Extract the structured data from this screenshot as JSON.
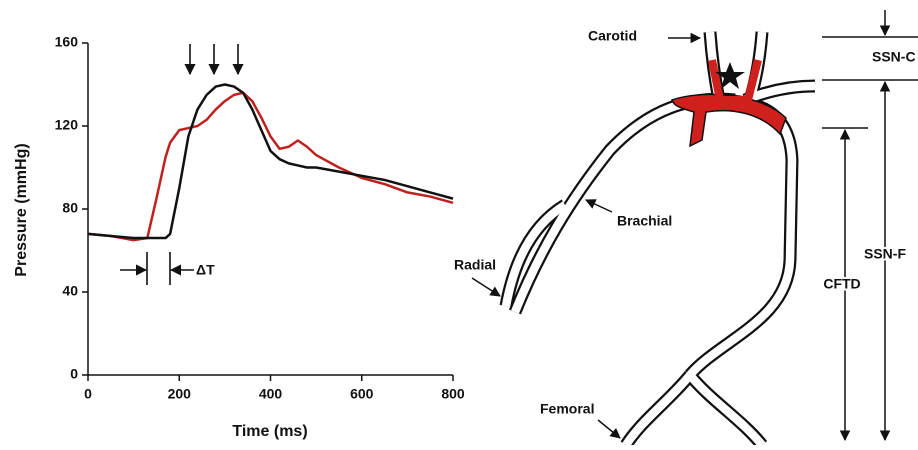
{
  "chart_data": {
    "type": "line",
    "xlabel": "Time (ms)",
    "ylabel": "Pressure (mmHg)",
    "annotation": "ΔT",
    "x": [
      0,
      50,
      100,
      130,
      150,
      170,
      180,
      200,
      220,
      240,
      260,
      280,
      300,
      320,
      340,
      360,
      380,
      400,
      420,
      440,
      460,
      480,
      500,
      550,
      600,
      650,
      700,
      750,
      800
    ],
    "series": [
      {
        "color": "#111111",
        "values": [
          68,
          67,
          66,
          66,
          66,
          66,
          68,
          90,
          115,
          128,
          135,
          139,
          140,
          139,
          136,
          128,
          118,
          108,
          104,
          102,
          101,
          100,
          100,
          98,
          96,
          94,
          91,
          88,
          85
        ]
      },
      {
        "color": "#c0201e",
        "values": [
          68,
          67,
          65,
          66,
          85,
          105,
          112,
          118,
          119,
          120,
          123,
          128,
          132,
          135,
          136,
          132,
          124,
          115,
          109,
          110,
          113,
          110,
          106,
          100,
          95,
          92,
          88,
          86,
          83
        ]
      }
    ],
    "xlim": [
      0,
      800
    ],
    "xticks": [
      0,
      200,
      400,
      600,
      800
    ],
    "ylim": [
      0,
      160
    ],
    "yticks": [
      0,
      40,
      80,
      120,
      160
    ]
  },
  "diagram": {
    "labels": {
      "carotid": "Carotid",
      "brachial": "Brachial",
      "radial": "Radial",
      "femoral": "Femoral",
      "ssn_c": "SSN-C",
      "ssn_f": "SSN-F",
      "cftd": "CFTD"
    }
  }
}
